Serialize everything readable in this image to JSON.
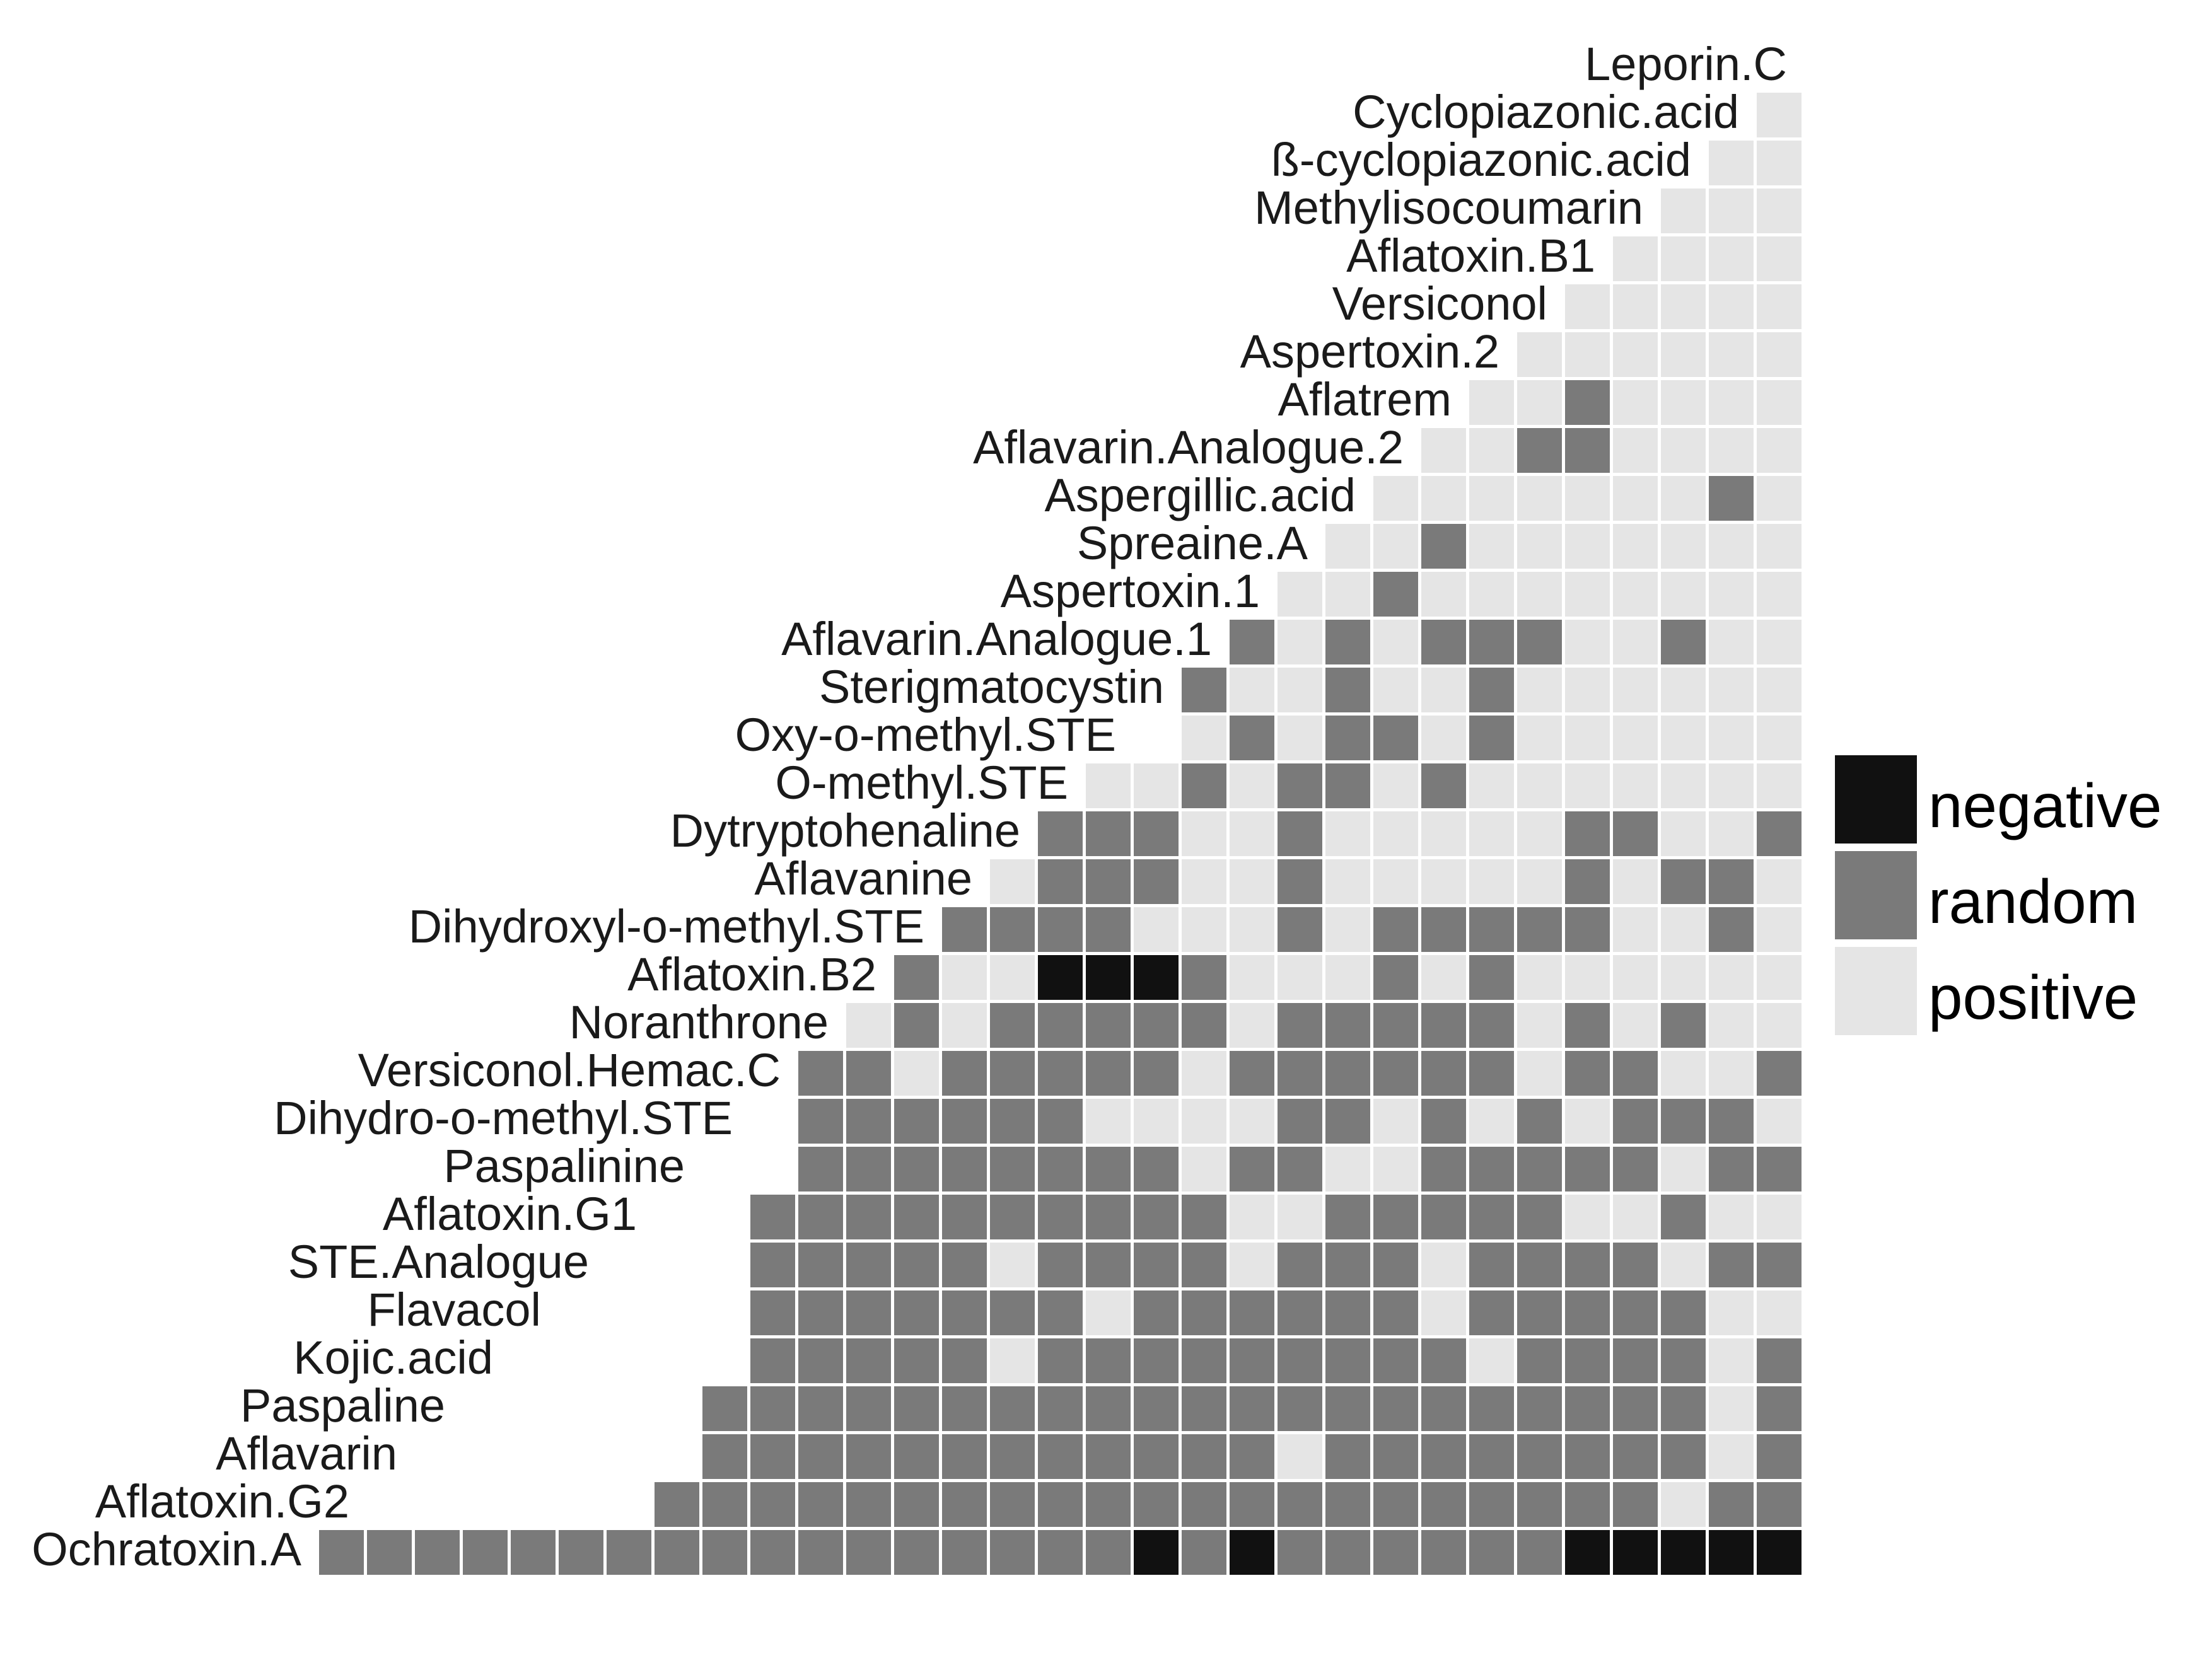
{
  "chart_data": {
    "type": "heatmap",
    "title": "",
    "categories": [
      "Leporin.C",
      "Cyclopiazonic.acid",
      "ß-cyclopiazonic.acid",
      "Methylisocoumarin",
      "Aflatoxin.B1",
      "Versiconol",
      "Aspertoxin.2",
      "Aflatrem",
      "Aflavarin.Analogue.2",
      "Aspergillic.acid",
      "Spreaine.A",
      "Aspertoxin.1",
      "Aflavarin.Analogue.1",
      "Sterigmatocystin",
      "Oxy-o-methyl.STE",
      "O-methyl.STE",
      "Dytryptohenaline",
      "Aflavanine",
      "Dihydroxyl-o-methyl.STE",
      "Aflatoxin.B2",
      "Noranthrone",
      "Versiconol.Hemac.C",
      "Dihydro-o-methyl.STE",
      "Paspalinine",
      "Aflatoxin.G1",
      "STE.Analogue",
      "Flavacol",
      "Kojic.acid",
      "Paspaline",
      "Aflavarin",
      "Aflatoxin.G2",
      "Ochratoxin.A"
    ],
    "value_codes": {
      "n": "negative",
      "r": "random",
      "p": "positive"
    },
    "rows": [
      "",
      "p",
      "pp",
      "ppp",
      "pppp",
      "ppppp",
      "pppppp",
      "pprpppp",
      "pprrpppp",
      "ppppppprp",
      "pprppppppp",
      "pprpppppppp",
      "rprprrrpprpp",
      "rpprpprpppppp",
      "prprrprpppppp",
      "pprprrprppppppp",
      "rrrpprppppprrppr",
      "prrrpprppppprprrp",
      "rrrrppprprrrrrpprp",
      "rppnnnrppprprpppppp",
      "prprrrrrprrrrrprprpp",
      "rrprrrrrprrrrrrprrppr",
      "rrrrrrpppprrprprprrrp",
      "rrrrrrrrprrpprrrrrprr",
      "rrrrrrrrrrpprrrrrpprpp",
      "rrrrrprrrrprrrprrrrprr",
      "rrrrrrrprrrrrrprrrrrpp",
      "rrrrrprrrrrrrrrprrrrpr",
      "rrrrrrrrrrrrrrrrrrrrrpr",
      "rrrrrrrrrrrrprrrrrrrrpr",
      "rrrrrrrrrrrrrrrrrrrrrprr",
      "rrrrrrrrrrrrrrrrrnrnrrrrrrnnnnn"
    ],
    "legend": {
      "position": "right",
      "entries": [
        {
          "label": "negative",
          "color": "#111111"
        },
        {
          "label": "random",
          "color": "#7a7a7a"
        },
        {
          "label": "positive",
          "color": "#e5e5e5"
        }
      ]
    },
    "colors": {
      "negative": "#111111",
      "random": "#7a7a7a",
      "positive": "#e5e5e5",
      "grid": "#ffffff"
    },
    "grid": true
  }
}
